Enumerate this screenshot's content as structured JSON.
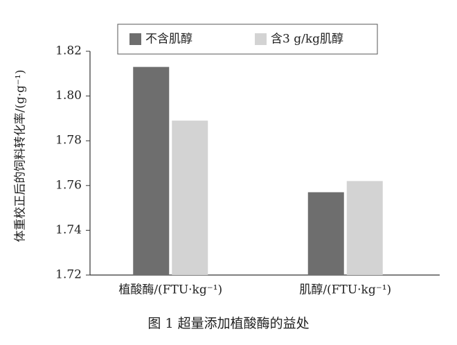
{
  "chart_data": {
    "type": "bar",
    "title": "图 1  超量添加植酸酶的益处",
    "y_label": "体重校正后的饲料转化率/(g·g⁻¹)",
    "categories": [
      "植酸酶/(FTU·kg⁻¹)",
      "肌醇/(FTU·kg⁻¹)"
    ],
    "series": [
      {
        "name": "不含肌醇",
        "color": "#6e6e6e",
        "values": [
          1.813,
          1.757
        ]
      },
      {
        "name": "含3 g/kg肌醇",
        "color": "#d3d3d3",
        "values": [
          1.789,
          1.762
        ]
      }
    ],
    "ylim": [
      1.72,
      1.82
    ],
    "yticks": [
      1.72,
      1.74,
      1.76,
      1.78,
      {
        "value": 1.8,
        "label": "1.80"
      },
      1.82
    ],
    "legend": "top"
  }
}
